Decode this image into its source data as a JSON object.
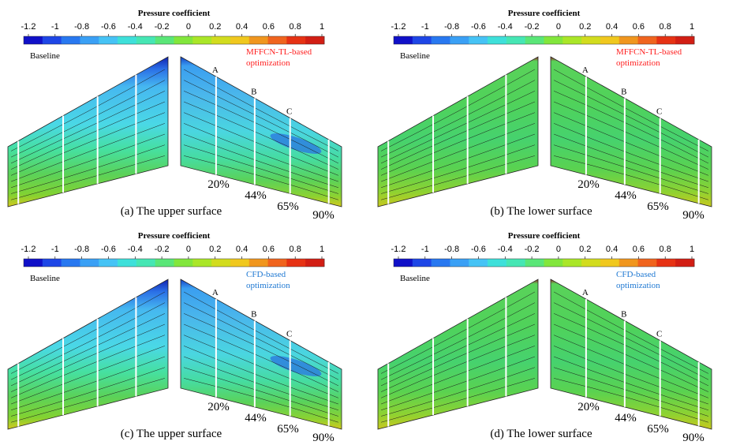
{
  "colorbar": {
    "title": "Pressure coefficient",
    "ticks": [
      "-1.2",
      "-1",
      "-0.8",
      "-0.6",
      "-0.4",
      "-0.2",
      "0",
      "0.2",
      "0.4",
      "0.6",
      "0.8",
      "1"
    ],
    "colors": [
      "#1010c8",
      "#1e46e6",
      "#2878f0",
      "#3aa0f5",
      "#46c3f5",
      "#3ee0da",
      "#46e6b4",
      "#5ae678",
      "#82e63c",
      "#aae628",
      "#d2dc1e",
      "#f0c81e",
      "#f0961e",
      "#f0641e",
      "#e63214",
      "#d21e14"
    ]
  },
  "panels": [
    {
      "caption": "(a) The upper surface",
      "left_label": "Baseline",
      "right_label": [
        "MFFCN-TL-based",
        "optimization"
      ],
      "right_label_color": "#ff2020",
      "sections": [
        "A",
        "B",
        "C"
      ],
      "percentages": [
        "20%",
        "44%",
        "65%",
        "90%"
      ],
      "surface": "upper"
    },
    {
      "caption": "(b) The lower surface",
      "left_label": "Baseline",
      "right_label": [
        "MFFCN-TL-based",
        "optimization"
      ],
      "right_label_color": "#ff2020",
      "sections": [
        "A",
        "B",
        "C"
      ],
      "percentages": [
        "20%",
        "44%",
        "65%",
        "90%"
      ],
      "surface": "lower"
    },
    {
      "caption": "(c) The upper surface",
      "left_label": "Baseline",
      "right_label": [
        "CFD-based",
        "optimization"
      ],
      "right_label_color": "#1e78d2",
      "sections": [
        "A",
        "B",
        "C"
      ],
      "percentages": [
        "20%",
        "44%",
        "65%",
        "90%"
      ],
      "surface": "upper"
    },
    {
      "caption": "(d) The lower surface",
      "left_label": "Baseline",
      "right_label": [
        "CFD-based",
        "optimization"
      ],
      "right_label_color": "#1e78d2",
      "sections": [
        "A",
        "B",
        "C"
      ],
      "percentages": [
        "20%",
        "44%",
        "65%",
        "90%"
      ],
      "surface": "lower"
    }
  ]
}
